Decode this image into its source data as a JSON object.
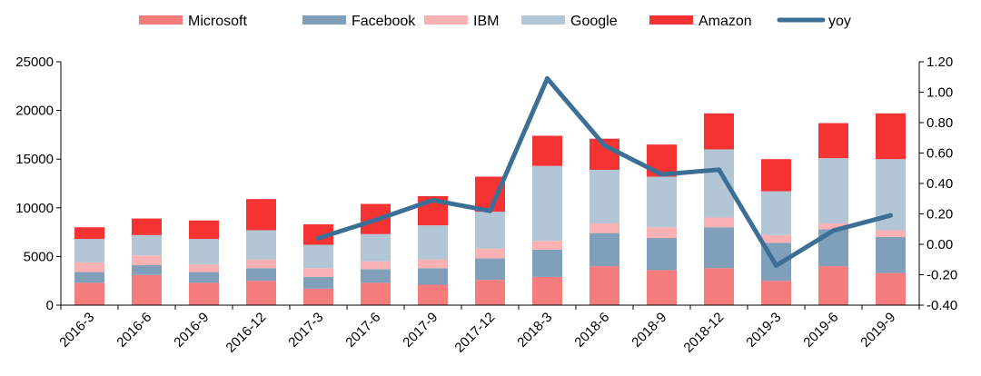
{
  "chart_data": {
    "type": "bar",
    "stacked": true,
    "categories": [
      "2016-3",
      "2016-6",
      "2016-9",
      "2016-12",
      "2017-3",
      "2017-6",
      "2017-9",
      "2017-12",
      "2018-3",
      "2018-6",
      "2018-9",
      "2018-12",
      "2019-3",
      "2019-6",
      "2019-9"
    ],
    "series": [
      {
        "name": "Microsoft",
        "color": "#f47c7c",
        "values": [
          2300,
          3100,
          2300,
          2500,
          1700,
          2300,
          2100,
          2600,
          2900,
          4000,
          3600,
          3800,
          2500,
          4000,
          3300
        ]
      },
      {
        "name": "Facebook",
        "color": "#7f9fbb",
        "values": [
          1100,
          1000,
          1100,
          1300,
          1200,
          1400,
          1700,
          2200,
          2800,
          3400,
          3300,
          4200,
          3900,
          3800,
          3700
        ]
      },
      {
        "name": "IBM",
        "color": "#f9b1b3",
        "values": [
          1000,
          1000,
          800,
          900,
          900,
          800,
          900,
          1000,
          900,
          1000,
          1100,
          1000,
          800,
          600,
          700
        ]
      },
      {
        "name": "Google",
        "color": "#b3c6d6",
        "values": [
          2400,
          2100,
          2600,
          3000,
          2400,
          2800,
          3500,
          3800,
          7700,
          5500,
          5200,
          7000,
          4500,
          6700,
          7300
        ]
      },
      {
        "name": "Amazon",
        "color": "#f63333",
        "values": [
          1200,
          1700,
          1900,
          3200,
          2100,
          3100,
          3000,
          3600,
          3100,
          3200,
          3300,
          3700,
          3300,
          3600,
          4700
        ]
      }
    ],
    "line_series": {
      "name": "yoy",
      "color": "#3c6f96",
      "axis": "right",
      "start_index": 4,
      "values": [
        0.04,
        0.16,
        0.29,
        0.22,
        1.09,
        0.65,
        0.46,
        0.49,
        -0.14,
        0.09,
        0.19
      ]
    },
    "y_left": {
      "min": 0,
      "max": 25000,
      "ticks": [
        "0",
        "5000",
        "10000",
        "15000",
        "20000",
        "25000"
      ]
    },
    "y_right": {
      "min": -0.4,
      "max": 1.2,
      "ticks": [
        "-0.40",
        "-0.20",
        "0.00",
        "0.20",
        "0.40",
        "0.60",
        "0.80",
        "1.00",
        "1.20"
      ]
    },
    "legend_position": "top",
    "grid": false
  }
}
